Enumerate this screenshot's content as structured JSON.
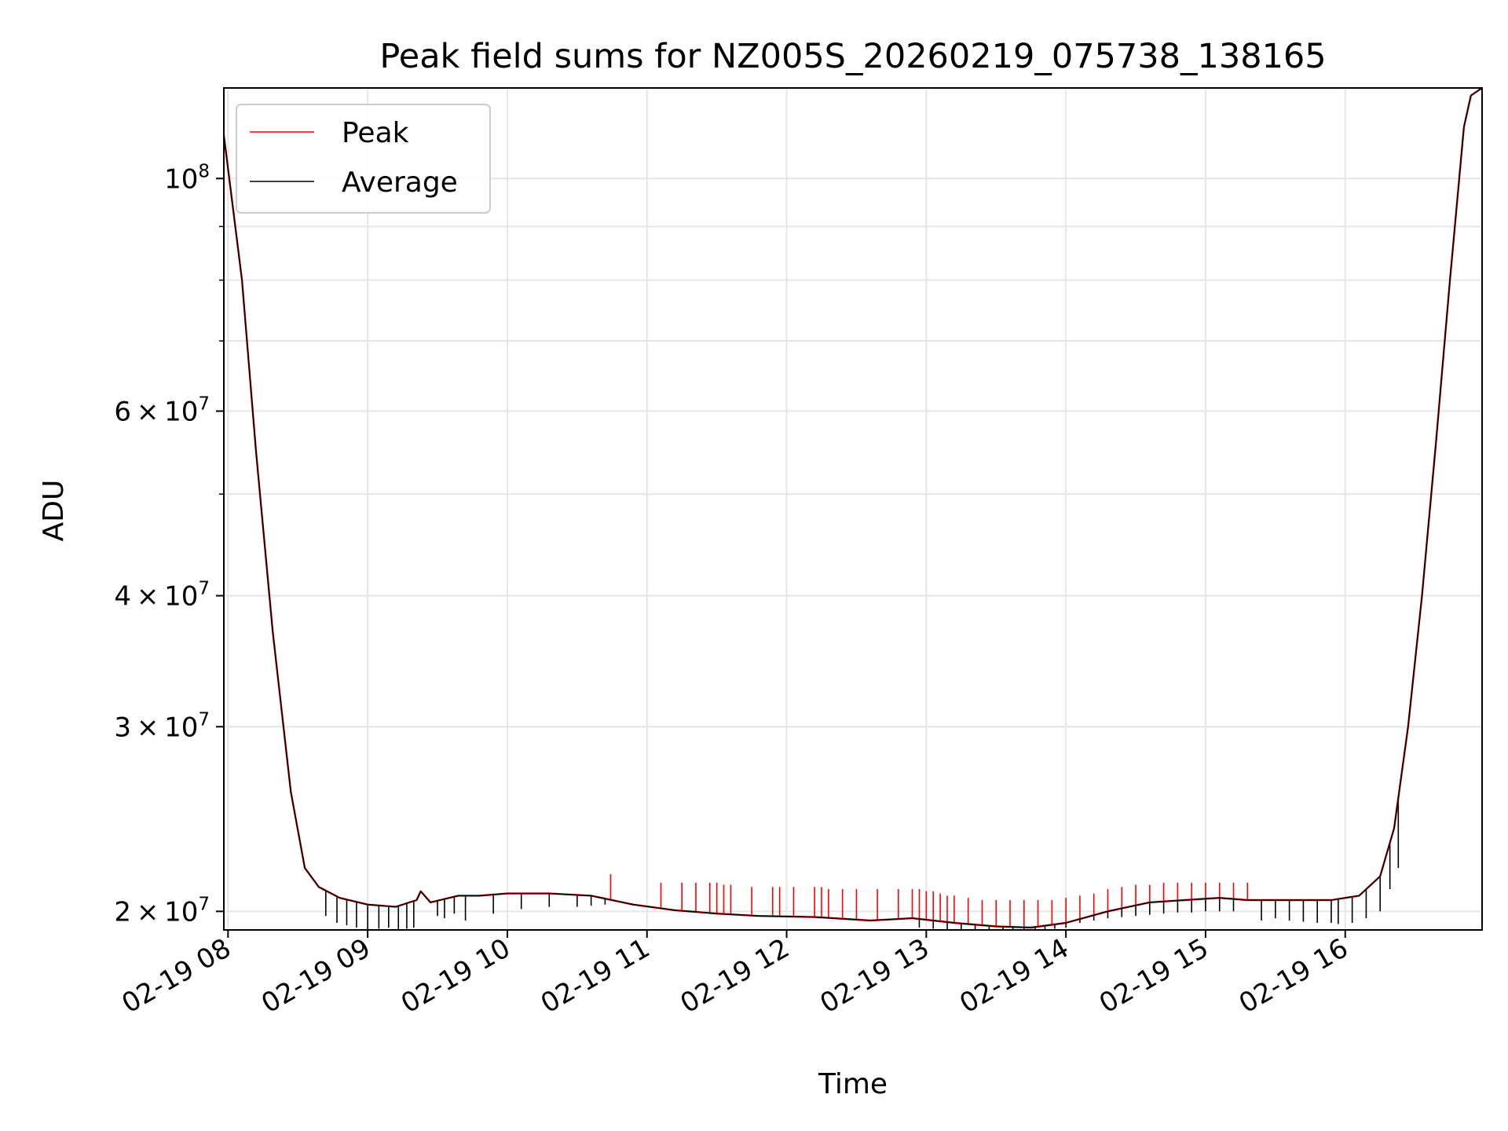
{
  "chart_data": {
    "type": "line",
    "title": "Peak field sums for NZ005S_20260219_075738_138165",
    "xlabel": "Time",
    "ylabel": "ADU",
    "yscale": "log",
    "xlim": [
      7.97,
      16.98
    ],
    "ylim": [
      19200000,
      122000000
    ],
    "grid": true,
    "legend_position": "upper-left",
    "x_ticks": [
      {
        "value": 8,
        "label": "02-19 08"
      },
      {
        "value": 9,
        "label": "02-19 09"
      },
      {
        "value": 10,
        "label": "02-19 10"
      },
      {
        "value": 11,
        "label": "02-19 11"
      },
      {
        "value": 12,
        "label": "02-19 12"
      },
      {
        "value": 13,
        "label": "02-19 13"
      },
      {
        "value": 14,
        "label": "02-19 14"
      },
      {
        "value": 15,
        "label": "02-19 15"
      },
      {
        "value": 16,
        "label": "02-19 16"
      }
    ],
    "y_ticks": [
      {
        "value": 20000000,
        "mantissa": "2",
        "times": "×",
        "base": "10",
        "exponent": "7"
      },
      {
        "value": 30000000,
        "mantissa": "3",
        "times": "×",
        "base": "10",
        "exponent": "7"
      },
      {
        "value": 40000000,
        "mantissa": "4",
        "times": "×",
        "base": "10",
        "exponent": "7"
      },
      {
        "value": 60000000,
        "mantissa": "6",
        "times": "×",
        "base": "10",
        "exponent": "7"
      },
      {
        "value": 100000000,
        "mantissa": "",
        "times": "",
        "base": "10",
        "exponent": "8"
      }
    ],
    "y_minor_ticks": [
      50000000,
      70000000,
      80000000,
      90000000
    ],
    "x_units": "hour of day (02-19)",
    "series": [
      {
        "name": "Peak",
        "color": "#ff0000",
        "x": [
          7.97,
          8.1,
          8.2,
          8.32,
          8.45,
          8.55,
          8.65,
          8.8,
          9.0,
          9.2,
          9.35,
          9.38,
          9.45,
          9.65,
          9.8,
          10.0,
          10.3,
          10.6,
          10.9,
          11.2,
          11.5,
          11.8,
          12.2,
          12.6,
          12.9,
          13.2,
          13.5,
          13.75,
          14.0,
          14.3,
          14.6,
          14.85,
          15.1,
          15.3,
          15.6,
          15.9,
          16.1,
          16.25,
          16.35,
          16.45,
          16.55,
          16.65,
          16.75,
          16.85,
          16.9,
          16.98
        ],
        "y": [
          110000000,
          80000000,
          55000000,
          37000000,
          26000000,
          22000000,
          21100000,
          20600000,
          20300000,
          20200000,
          20500000,
          20900000,
          20400000,
          20700000,
          20700000,
          20800000,
          20800000,
          20700000,
          20300000,
          20050000,
          19900000,
          19800000,
          19750000,
          19600000,
          19700000,
          19500000,
          19350000,
          19300000,
          19500000,
          20000000,
          20400000,
          20500000,
          20600000,
          20500000,
          20500000,
          20500000,
          20700000,
          21600000,
          24000000,
          30000000,
          40000000,
          56000000,
          80000000,
          112000000,
          120000000,
          122000000
        ]
      },
      {
        "name": "Average",
        "color": "#000000",
        "x": [
          7.97,
          8.1,
          8.2,
          8.32,
          8.45,
          8.55,
          8.65,
          8.8,
          9.0,
          9.2,
          9.35,
          9.38,
          9.45,
          9.65,
          9.8,
          10.0,
          10.3,
          10.6,
          10.9,
          11.2,
          11.5,
          11.8,
          12.2,
          12.6,
          12.9,
          13.2,
          13.5,
          13.75,
          14.0,
          14.3,
          14.6,
          14.85,
          15.1,
          15.3,
          15.6,
          15.9,
          16.1,
          16.25,
          16.35,
          16.45,
          16.55,
          16.65,
          16.75,
          16.85,
          16.9,
          16.98
        ],
        "y": [
          110000000,
          80000000,
          55000000,
          37000000,
          26000000,
          22000000,
          21100000,
          20600000,
          20300000,
          20200000,
          20500000,
          20900000,
          20400000,
          20700000,
          20700000,
          20800000,
          20800000,
          20700000,
          20300000,
          20050000,
          19900000,
          19800000,
          19750000,
          19600000,
          19700000,
          19500000,
          19350000,
          19300000,
          19500000,
          20000000,
          20400000,
          20500000,
          20600000,
          20500000,
          20500000,
          20500000,
          20700000,
          21600000,
          24000000,
          30000000,
          40000000,
          56000000,
          80000000,
          112000000,
          120000000,
          122000000
        ]
      }
    ],
    "spikes": {
      "peak_up": {
        "color": "#ff0000",
        "x": [
          10.74,
          11.1,
          11.25,
          11.35,
          11.45,
          11.5,
          11.55,
          11.6,
          11.75,
          11.9,
          11.95,
          12.05,
          12.2,
          12.25,
          12.3,
          12.4,
          12.5,
          12.65,
          12.8,
          12.9,
          12.95,
          13.0,
          13.05,
          13.1,
          13.15,
          13.2,
          13.3,
          13.4,
          13.5,
          13.6,
          13.7,
          13.8,
          13.9,
          14.0,
          14.1,
          14.2,
          14.3,
          14.4,
          14.5,
          14.6,
          14.7,
          14.8,
          14.9,
          15.0,
          15.1,
          15.2,
          15.3
        ],
        "top": [
          21700000,
          21300000,
          21300000,
          21300000,
          21300000,
          21300000,
          21200000,
          21200000,
          21100000,
          21100000,
          21100000,
          21100000,
          21100000,
          21100000,
          21000000,
          21000000,
          21000000,
          21000000,
          21000000,
          21000000,
          21000000,
          20900000,
          20900000,
          20800000,
          20700000,
          20700000,
          20600000,
          20500000,
          20500000,
          20500000,
          20500000,
          20500000,
          20500000,
          20600000,
          20700000,
          20800000,
          21000000,
          21100000,
          21200000,
          21200000,
          21300000,
          21300000,
          21300000,
          21300000,
          21300000,
          21300000,
          21300000
        ]
      },
      "average_down": {
        "color": "#000000",
        "x": [
          8.7,
          8.78,
          8.85,
          8.92,
          9.0,
          9.08,
          9.15,
          9.22,
          9.28,
          9.33,
          9.5,
          9.55,
          9.62,
          9.7,
          9.9,
          10.1,
          10.3,
          10.5,
          10.6,
          10.7,
          12.95,
          13.05,
          13.15,
          13.25,
          13.35,
          13.45,
          13.55,
          13.62,
          13.7,
          13.78,
          13.85,
          13.92,
          14.0,
          14.1,
          14.2,
          14.3,
          14.4,
          14.5,
          14.6,
          14.7,
          14.8,
          14.9,
          15.0,
          15.1,
          15.2,
          15.4,
          15.5,
          15.6,
          15.7,
          15.8,
          15.9,
          15.95,
          16.05,
          16.15,
          16.25,
          16.32,
          16.38
        ],
        "bottom": [
          19800000,
          19500000,
          19400000,
          19300000,
          19200000,
          19250000,
          19300000,
          19200000,
          19250000,
          19300000,
          19800000,
          19700000,
          19900000,
          19600000,
          19900000,
          20100000,
          20200000,
          20200000,
          20250000,
          20300000,
          19300000,
          19250000,
          19200000,
          19200000,
          19200000,
          19200000,
          19200000,
          19200000,
          19200000,
          19200000,
          19200000,
          19250000,
          19300000,
          19500000,
          19600000,
          19700000,
          19750000,
          19800000,
          19850000,
          19900000,
          19950000,
          19950000,
          20000000,
          20000000,
          20000000,
          19600000,
          19700000,
          19600000,
          19550000,
          19500000,
          19500000,
          19450000,
          19500000,
          19700000,
          20000000,
          21000000,
          22000000
        ]
      }
    },
    "legend": [
      {
        "name": "Peak",
        "color": "#ff0000"
      },
      {
        "name": "Average",
        "color": "#000000"
      }
    ]
  }
}
